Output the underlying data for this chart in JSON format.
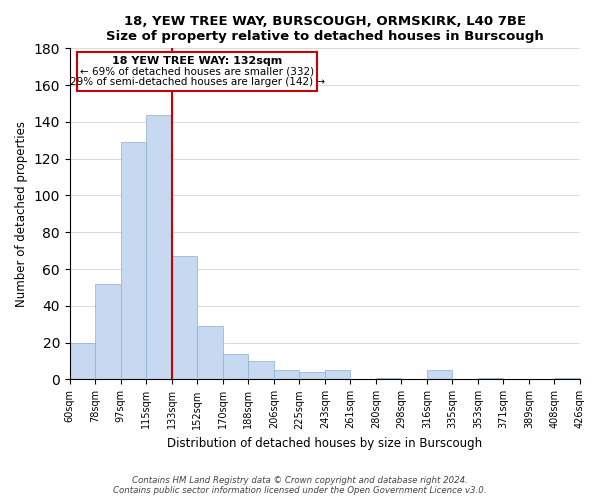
{
  "title": "18, YEW TREE WAY, BURSCOUGH, ORMSKIRK, L40 7BE",
  "subtitle": "Size of property relative to detached houses in Burscough",
  "xlabel": "Distribution of detached houses by size in Burscough",
  "ylabel": "Number of detached properties",
  "bar_values": [
    20,
    52,
    129,
    144,
    67,
    29,
    14,
    10,
    5,
    4,
    5,
    0,
    1,
    0,
    5,
    0,
    1,
    0,
    0,
    1
  ],
  "bin_labels": [
    "60sqm",
    "78sqm",
    "97sqm",
    "115sqm",
    "133sqm",
    "152sqm",
    "170sqm",
    "188sqm",
    "206sqm",
    "225sqm",
    "243sqm",
    "261sqm",
    "280sqm",
    "298sqm",
    "316sqm",
    "335sqm",
    "353sqm",
    "371sqm",
    "389sqm",
    "408sqm",
    "426sqm"
  ],
  "bar_color": "#c6d9f0",
  "bar_edge_color": "#8bafd4",
  "vline_x_index": 4,
  "marker_label": "18 YEW TREE WAY: 132sqm",
  "annotation_line1": "← 69% of detached houses are smaller (332)",
  "annotation_line2": "29% of semi-detached houses are larger (142) →",
  "vline_color": "#cc0000",
  "annotation_box_edge": "#cc0000",
  "ylim": [
    0,
    180
  ],
  "yticks": [
    0,
    20,
    40,
    60,
    80,
    100,
    120,
    140,
    160,
    180
  ],
  "footer1": "Contains HM Land Registry data © Crown copyright and database right 2024.",
  "footer2": "Contains public sector information licensed under the Open Government Licence v3.0."
}
